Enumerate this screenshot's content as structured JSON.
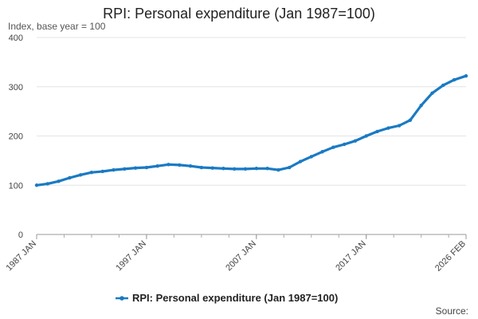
{
  "chart_data": {
    "type": "line",
    "title": "RPI: Personal expenditure (Jan 1987=100)",
    "subtitle": "Index, base year = 100",
    "xlabel": "",
    "ylabel": "Index, base year = 100",
    "ylim": [
      0,
      400
    ],
    "yticks": [
      0,
      100,
      200,
      300,
      400
    ],
    "xlim": [
      1987.0,
      2026.083
    ],
    "xtick_labels": [
      "1987 JAN",
      "1997 JAN",
      "2007 JAN",
      "2017 JAN",
      "2026 FEB"
    ],
    "xtick_values": [
      1987.0,
      1997.0,
      2007.0,
      2017.0,
      2026.083
    ],
    "minor_xticks": [
      1987,
      1989.5,
      1992,
      1994.5,
      1997,
      1999.5,
      2002,
      2004.5,
      2007,
      2009.5,
      2012,
      2014.5,
      2017,
      2019.5,
      2022,
      2024.5
    ],
    "grid": true,
    "legend_position": "bottom",
    "series": [
      {
        "name": "RPI: Personal expenditure (Jan 1987=100)",
        "color": "#1a7ac3",
        "x": [
          1987,
          1988,
          1989,
          1990,
          1991,
          1992,
          1993,
          1994,
          1995,
          1996,
          1997,
          1998,
          1999,
          2000,
          2001,
          2002,
          2003,
          2004,
          2005,
          2006,
          2007,
          2008,
          2009,
          2010,
          2011,
          2012,
          2013,
          2014,
          2015,
          2016,
          2017,
          2018,
          2019,
          2020,
          2021,
          2022,
          2023,
          2024,
          2025,
          2026.083
        ],
        "values": [
          100,
          103,
          108,
          115,
          121,
          126,
          128,
          131,
          133,
          135,
          136,
          139,
          142,
          141,
          139,
          136,
          135,
          134,
          133,
          133,
          134,
          134,
          131,
          136,
          148,
          158,
          168,
          177,
          183,
          190,
          200,
          209,
          216,
          221,
          232,
          262,
          287,
          303,
          314,
          322
        ]
      }
    ]
  },
  "footer": {
    "source_label": "Source:"
  }
}
